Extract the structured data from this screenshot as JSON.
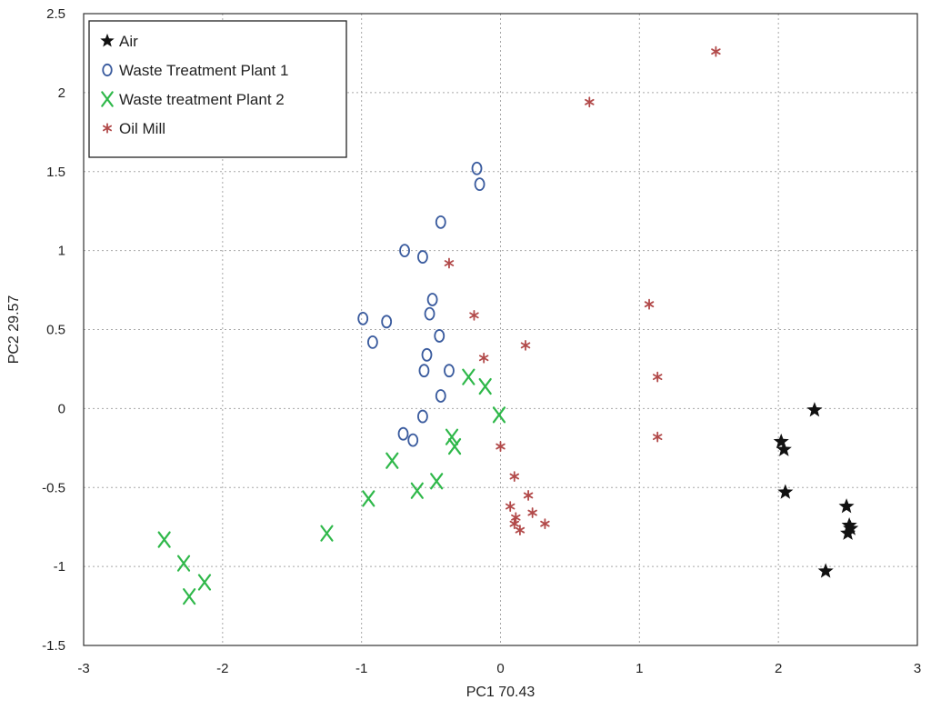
{
  "chart_data": {
    "type": "scatter",
    "title": "",
    "xlabel": "PC1 70.43",
    "ylabel": "PC2 29.57",
    "xlim": [
      -3,
      3
    ],
    "ylim": [
      -1.5,
      2.5
    ],
    "xticks": [
      -3,
      -2,
      -1,
      0,
      1,
      2,
      3
    ],
    "yticks": [
      -1.5,
      -1,
      -0.5,
      0,
      0.5,
      1,
      1.5,
      2,
      2.5
    ],
    "grid": true,
    "legend_position": "top-left",
    "series": [
      {
        "name": "Air",
        "marker": "filled-star",
        "color": "#111111",
        "points": [
          [
            2.26,
            -0.01
          ],
          [
            2.02,
            -0.21
          ],
          [
            2.04,
            -0.26
          ],
          [
            2.05,
            -0.53
          ],
          [
            2.49,
            -0.62
          ],
          [
            2.51,
            -0.74
          ],
          [
            2.52,
            -0.76
          ],
          [
            2.5,
            -0.79
          ],
          [
            2.34,
            -1.03
          ]
        ]
      },
      {
        "name": "Waste Treatment Plant 1",
        "marker": "O",
        "color": "#3a5b9e",
        "points": [
          [
            -0.17,
            1.52
          ],
          [
            -0.15,
            1.42
          ],
          [
            -0.43,
            1.18
          ],
          [
            -0.69,
            1.0
          ],
          [
            -0.56,
            0.96
          ],
          [
            -0.49,
            0.69
          ],
          [
            -0.51,
            0.6
          ],
          [
            -0.99,
            0.57
          ],
          [
            -0.82,
            0.55
          ],
          [
            -0.44,
            0.46
          ],
          [
            -0.92,
            0.42
          ],
          [
            -0.53,
            0.34
          ],
          [
            -0.55,
            0.24
          ],
          [
            -0.37,
            0.24
          ],
          [
            -0.43,
            0.08
          ],
          [
            -0.56,
            -0.05
          ],
          [
            -0.7,
            -0.16
          ],
          [
            -0.63,
            -0.2
          ]
        ]
      },
      {
        "name": "Waste treatment Plant 2",
        "marker": "X",
        "color": "#2fb84a",
        "points": [
          [
            -0.23,
            0.2
          ],
          [
            -0.11,
            0.14
          ],
          [
            -0.01,
            -0.04
          ],
          [
            -0.35,
            -0.18
          ],
          [
            -0.33,
            -0.24
          ],
          [
            -0.78,
            -0.33
          ],
          [
            -0.46,
            -0.46
          ],
          [
            -0.6,
            -0.52
          ],
          [
            -0.95,
            -0.57
          ],
          [
            -1.25,
            -0.79
          ],
          [
            -2.42,
            -0.83
          ],
          [
            -2.28,
            -0.98
          ],
          [
            -2.13,
            -1.1
          ],
          [
            -2.24,
            -1.19
          ]
        ]
      },
      {
        "name": "Oil Mill",
        "marker": "asterisk",
        "color": "#b24a4a",
        "points": [
          [
            1.55,
            2.26
          ],
          [
            0.64,
            1.94
          ],
          [
            -0.37,
            0.92
          ],
          [
            1.07,
            0.66
          ],
          [
            -0.19,
            0.59
          ],
          [
            0.18,
            0.4
          ],
          [
            -0.12,
            0.32
          ],
          [
            1.13,
            0.2
          ],
          [
            1.13,
            -0.18
          ],
          [
            0.0,
            -0.24
          ],
          [
            0.1,
            -0.43
          ],
          [
            0.2,
            -0.55
          ],
          [
            0.07,
            -0.62
          ],
          [
            0.23,
            -0.66
          ],
          [
            0.11,
            -0.69
          ],
          [
            0.32,
            -0.73
          ],
          [
            0.1,
            -0.73
          ],
          [
            0.14,
            -0.77
          ]
        ]
      }
    ]
  }
}
